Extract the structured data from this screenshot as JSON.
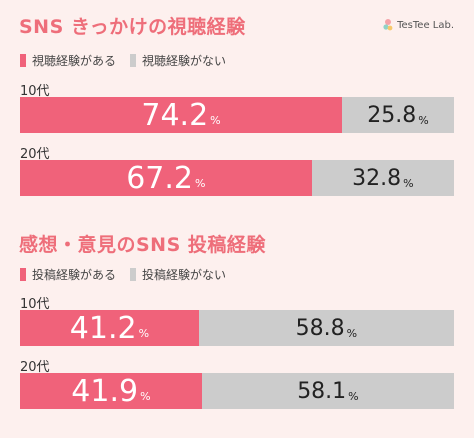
{
  "logo": {
    "text": "TesTee Lab."
  },
  "colors": {
    "primary": "#f0627a",
    "secondary": "#cccccc",
    "title": "#ee6e7a"
  },
  "chart_data": [
    {
      "type": "bar",
      "stacked": true,
      "orientation": "horizontal",
      "title": "SNS きっかけの視聴経験",
      "categories": [
        "10代",
        "20代"
      ],
      "series": [
        {
          "name": "視聴経験がある",
          "values": [
            74.2,
            67.2
          ]
        },
        {
          "name": "視聴経験がない",
          "values": [
            25.8,
            32.8
          ]
        }
      ],
      "unit": "%",
      "xlim": [
        0,
        100
      ],
      "legend": "top-left"
    },
    {
      "type": "bar",
      "stacked": true,
      "orientation": "horizontal",
      "title": "感想・意見のSNS 投稿経験",
      "categories": [
        "10代",
        "20代"
      ],
      "series": [
        {
          "name": "投稿経験がある",
          "values": [
            41.2,
            41.9
          ]
        },
        {
          "name": "投稿経験がない",
          "values": [
            58.8,
            58.1
          ]
        }
      ],
      "unit": "%",
      "xlim": [
        0,
        100
      ],
      "legend": "top-left"
    }
  ]
}
